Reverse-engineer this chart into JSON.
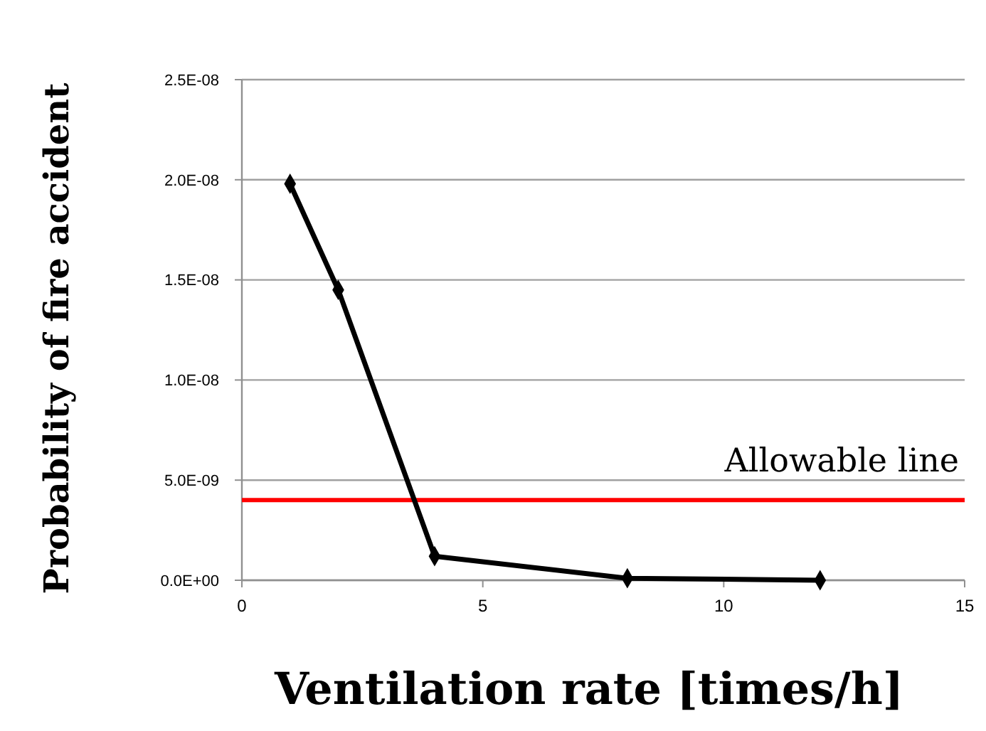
{
  "chart_data": {
    "type": "line",
    "xlabel": "Ventilation rate [times/h]",
    "ylabel": "Probability of fire accident",
    "x": [
      1,
      2,
      4,
      8,
      12
    ],
    "series": [
      {
        "color": "#000000",
        "values": [
          1.98e-08,
          1.45e-08,
          1.2e-09,
          1e-10,
          0
        ]
      }
    ],
    "xlim": [
      0,
      15
    ],
    "xticks": [
      0,
      5,
      10,
      15
    ],
    "ylim": [
      0,
      2.5e-08
    ],
    "yticks": [
      {
        "value": 0,
        "label": "0.0E+00"
      },
      {
        "value": 5e-09,
        "label": "5.0E-09"
      },
      {
        "value": 1e-08,
        "label": "1.0E-08"
      },
      {
        "value": 1.5e-08,
        "label": "1.5E-08"
      },
      {
        "value": 2e-08,
        "label": "2.0E-08"
      },
      {
        "value": 2.5e-08,
        "label": "2.5E-08"
      }
    ],
    "ref_lines": [
      {
        "axis": "y",
        "value": 4e-09,
        "label": "Allowable line",
        "color": "#ff0000"
      }
    ],
    "grid": "y",
    "marker": "diamond",
    "line_style": "solid"
  }
}
